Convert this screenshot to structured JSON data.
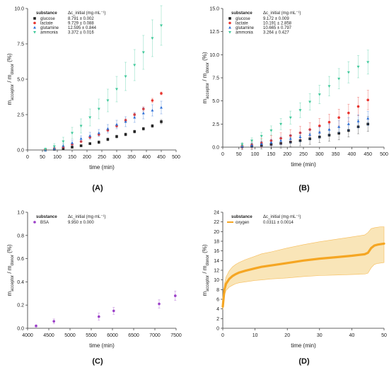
{
  "chart_data": [
    {
      "id": "A",
      "type": "scatter",
      "panel_label": "(A)",
      "xlabel": "time (min)",
      "ylabel": "m_acceptor / m_donor (%)",
      "xlim": [
        0,
        500
      ],
      "ylim": [
        0,
        10
      ],
      "xticks": [
        0,
        50,
        100,
        150,
        200,
        250,
        300,
        350,
        400,
        450,
        500
      ],
      "yticks": [
        0.0,
        2.5,
        5.0,
        7.5,
        10.0
      ],
      "legend": {
        "header": "substance",
        "header_right": "Δc_initial (mg·mL⁻¹)",
        "placement": "top-left"
      },
      "x": [
        60,
        90,
        120,
        150,
        180,
        210,
        240,
        270,
        300,
        330,
        360,
        390,
        420,
        450
      ],
      "series": [
        {
          "name": "glucose",
          "value_text": "8.791 ± 0.002",
          "color": "#222222",
          "marker": "square",
          "values": [
            0.0,
            0.05,
            0.1,
            0.2,
            0.3,
            0.45,
            0.55,
            0.75,
            0.95,
            1.1,
            1.3,
            1.5,
            1.7,
            2.0
          ],
          "errors": [
            0.05,
            0.05,
            0.05,
            0.05,
            0.05,
            0.05,
            0.1,
            0.1,
            0.1,
            0.1,
            0.1,
            0.1,
            0.1,
            0.15
          ]
        },
        {
          "name": "lactate",
          "value_text": "9.729 ± 0.088",
          "color": "#e8342e",
          "marker": "circle",
          "values": [
            0.0,
            0.1,
            0.2,
            0.4,
            0.6,
            0.9,
            1.1,
            1.4,
            1.7,
            2.1,
            2.5,
            2.9,
            3.5,
            4.0
          ],
          "errors": [
            0.05,
            0.05,
            0.05,
            0.05,
            0.05,
            0.1,
            0.1,
            0.1,
            0.1,
            0.1,
            0.1,
            0.15,
            0.15,
            0.1
          ]
        },
        {
          "name": "glutamine",
          "value_text": "12.595 ± 0.844",
          "color": "#2c6fd6",
          "marker": "triangle-up",
          "values": [
            0.0,
            0.1,
            0.3,
            0.5,
            0.8,
            1.0,
            1.2,
            1.5,
            1.8,
            2.0,
            2.3,
            2.6,
            2.8,
            3.0
          ],
          "errors": [
            0.1,
            0.1,
            0.15,
            0.2,
            0.2,
            0.25,
            0.25,
            0.3,
            0.3,
            0.35,
            0.35,
            0.4,
            0.4,
            0.45
          ]
        },
        {
          "name": "ammonia",
          "value_text": "3.372 ± 0.016",
          "color": "#3fc99a",
          "marker": "triangle-down",
          "values": [
            0.05,
            0.25,
            0.6,
            1.2,
            1.7,
            2.3,
            2.9,
            3.5,
            4.3,
            5.2,
            6.0,
            6.9,
            7.9,
            8.8
          ],
          "errors": [
            0.1,
            0.2,
            0.3,
            0.4,
            0.5,
            0.6,
            0.7,
            0.8,
            0.9,
            1.0,
            1.1,
            1.2,
            1.3,
            1.4
          ]
        }
      ]
    },
    {
      "id": "B",
      "type": "scatter",
      "panel_label": "(B)",
      "xlabel": "time (min)",
      "ylabel": "m_acceptor / m_donor (%)",
      "xlim": [
        0,
        500
      ],
      "ylim": [
        0,
        15
      ],
      "xticks": [
        0,
        50,
        100,
        150,
        200,
        250,
        300,
        350,
        400,
        450,
        500
      ],
      "yticks": [
        0.0,
        2.5,
        5.0,
        7.5,
        10.0,
        12.5,
        15.0
      ],
      "legend": {
        "header": "substance",
        "header_right": "Δc_initial (mg·mL⁻¹)",
        "placement": "top-left"
      },
      "x": [
        60,
        90,
        120,
        150,
        180,
        210,
        240,
        270,
        300,
        330,
        360,
        390,
        420,
        450
      ],
      "series": [
        {
          "name": "glucose",
          "value_text": "9.172 ± 0.009",
          "color": "#222222",
          "marker": "square",
          "values": [
            0.05,
            0.1,
            0.2,
            0.3,
            0.4,
            0.55,
            0.7,
            0.9,
            1.1,
            1.3,
            1.5,
            1.8,
            2.2,
            2.5
          ],
          "errors": [
            0.3,
            0.35,
            0.4,
            0.45,
            0.5,
            0.5,
            0.55,
            0.6,
            0.6,
            0.65,
            0.7,
            0.7,
            0.75,
            0.8
          ]
        },
        {
          "name": "lactate",
          "value_text": "10.191 ± 2.858",
          "color": "#e8342e",
          "marker": "circle",
          "values": [
            0.1,
            0.25,
            0.45,
            0.7,
            0.95,
            1.25,
            1.55,
            1.9,
            2.3,
            2.7,
            3.2,
            3.7,
            4.4,
            5.1
          ],
          "errors": [
            0.3,
            0.4,
            0.5,
            0.55,
            0.6,
            0.65,
            0.7,
            0.75,
            0.8,
            0.85,
            0.9,
            0.95,
            1.0,
            1.05
          ]
        },
        {
          "name": "glutamine",
          "value_text": "10.665 ± 0.797",
          "color": "#2c6fd6",
          "marker": "triangle-up",
          "values": [
            0.1,
            0.2,
            0.35,
            0.5,
            0.7,
            0.9,
            1.1,
            1.35,
            1.6,
            1.9,
            2.2,
            2.5,
            2.8,
            3.1
          ],
          "errors": [
            0.2,
            0.25,
            0.3,
            0.35,
            0.4,
            0.45,
            0.5,
            0.55,
            0.6,
            0.6,
            0.65,
            0.7,
            0.7,
            0.75
          ]
        },
        {
          "name": "ammonia",
          "value_text": "3.264 ± 0.427",
          "color": "#3fc99a",
          "marker": "triangle-down",
          "values": [
            0.3,
            0.7,
            1.2,
            1.8,
            2.5,
            3.2,
            4.0,
            4.9,
            5.7,
            6.6,
            7.4,
            8.1,
            8.7,
            9.2
          ],
          "errors": [
            0.2,
            0.3,
            0.4,
            0.5,
            0.6,
            0.7,
            0.8,
            0.9,
            1.0,
            1.05,
            1.1,
            1.15,
            1.2,
            1.3
          ]
        }
      ]
    },
    {
      "id": "C",
      "type": "scatter",
      "panel_label": "(C)",
      "xlabel": "time (min)",
      "ylabel": "m_acceptor / m_donor (%)",
      "xlim": [
        4000,
        7500
      ],
      "ylim": [
        0,
        1.0
      ],
      "xticks": [
        4000,
        4500,
        5000,
        5500,
        6000,
        6500,
        7000,
        7500
      ],
      "yticks": [
        0.0,
        0.2,
        0.4,
        0.6,
        0.8,
        1.0
      ],
      "legend": {
        "header": "substance",
        "header_right": "Δc_initial (mg·mL⁻¹)",
        "placement": "top-left"
      },
      "series": [
        {
          "name": "BSA",
          "value_text": "9.950 ± 0.000",
          "color": "#9b3fc8",
          "marker": "circle",
          "x": [
            4200,
            4620,
            5680,
            6030,
            7100,
            7480
          ],
          "values": [
            0.02,
            0.06,
            0.1,
            0.15,
            0.21,
            0.28
          ],
          "errors": [
            0.01,
            0.02,
            0.03,
            0.03,
            0.035,
            0.04
          ]
        }
      ]
    },
    {
      "id": "D",
      "type": "line",
      "panel_label": "(D)",
      "xlabel": "time (min)",
      "ylabel": "m_acceptor / m_donor (%)",
      "xlim": [
        0,
        50
      ],
      "ylim": [
        0,
        24
      ],
      "xticks": [
        0,
        10,
        20,
        30,
        40,
        50
      ],
      "yticks": [
        0,
        2,
        4,
        6,
        8,
        10,
        12,
        14,
        16,
        18,
        20,
        22,
        24
      ],
      "legend": {
        "header": "substance",
        "header_right": "Δc_initial (mg·mL⁻¹)",
        "placement": "top-left"
      },
      "series": [
        {
          "name": "oxygen",
          "value_text": "0.0311 ± 0.0014",
          "color": "#f5a623",
          "band_color": "#f7dfa6",
          "x": [
            0,
            0.5,
            1,
            2,
            3,
            4,
            5,
            7,
            10,
            12,
            15,
            20,
            25,
            30,
            35,
            40,
            44,
            45,
            46,
            47,
            48,
            49,
            50
          ],
          "values": [
            4.5,
            8.0,
            9.2,
            10.2,
            10.8,
            11.2,
            11.5,
            11.9,
            12.4,
            12.7,
            13.0,
            13.5,
            14.0,
            14.4,
            14.7,
            15.0,
            15.3,
            15.6,
            16.6,
            17.1,
            17.3,
            17.4,
            17.5
          ],
          "lower": [
            3.8,
            6.8,
            7.8,
            8.5,
            8.9,
            9.2,
            9.4,
            9.6,
            9.9,
            10.0,
            10.2,
            10.4,
            10.7,
            10.9,
            11.0,
            11.1,
            11.2,
            11.4,
            12.5,
            13.2,
            13.4,
            13.5,
            13.6
          ],
          "upper": [
            5.2,
            9.2,
            10.6,
            11.9,
            12.7,
            13.2,
            13.6,
            14.2,
            14.9,
            15.4,
            15.8,
            16.6,
            17.3,
            17.9,
            18.4,
            18.9,
            19.3,
            19.8,
            20.6,
            20.8,
            20.9,
            21.0,
            21.0
          ]
        }
      ]
    }
  ]
}
